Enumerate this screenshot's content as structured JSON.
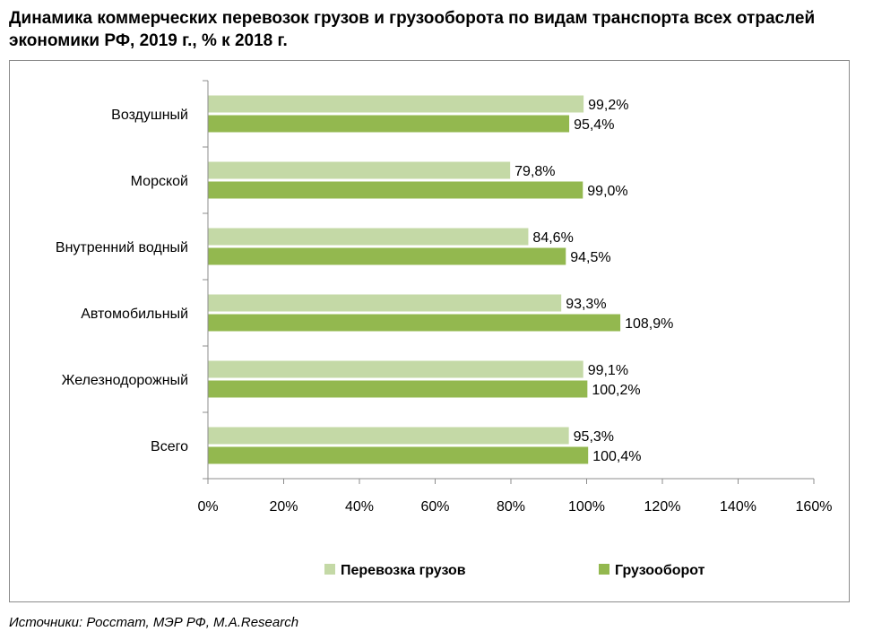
{
  "chart_data": {
    "type": "bar",
    "orientation": "horizontal",
    "title": "Динамика коммерческих перевозок грузов и грузооборота по видам транспорта всех отраслей экономики РФ, 2019 г., % к 2018 г.",
    "categories": [
      "Воздушный",
      "Морской",
      "Внутренний водный",
      "Автомобильный",
      "Железнодорожный",
      "Всего"
    ],
    "series": [
      {
        "name": "Перевозка грузов",
        "color": "#c4d9a6",
        "values": [
          99.2,
          79.8,
          84.6,
          93.3,
          99.1,
          95.3
        ],
        "labels": [
          "99,2%",
          "79,8%",
          "84,6%",
          "93,3%",
          "99,1%",
          "95,3%"
        ]
      },
      {
        "name": "Грузооборот",
        "color": "#93b84f",
        "values": [
          95.4,
          99.0,
          94.5,
          108.9,
          100.2,
          100.4
        ],
        "labels": [
          "95,4%",
          "99,0%",
          "94,5%",
          "108,9%",
          "100,2%",
          "100,4%"
        ]
      }
    ],
    "xlim": [
      0,
      160
    ],
    "xticks": [
      0,
      20,
      40,
      60,
      80,
      100,
      120,
      140,
      160
    ],
    "xtick_labels": [
      "0%",
      "20%",
      "40%",
      "60%",
      "80%",
      "100%",
      "120%",
      "140%",
      "160%"
    ],
    "grid": false,
    "legend_position": "bottom"
  },
  "source_text": "Источники: Росстат, МЭР РФ, M.A.Research"
}
